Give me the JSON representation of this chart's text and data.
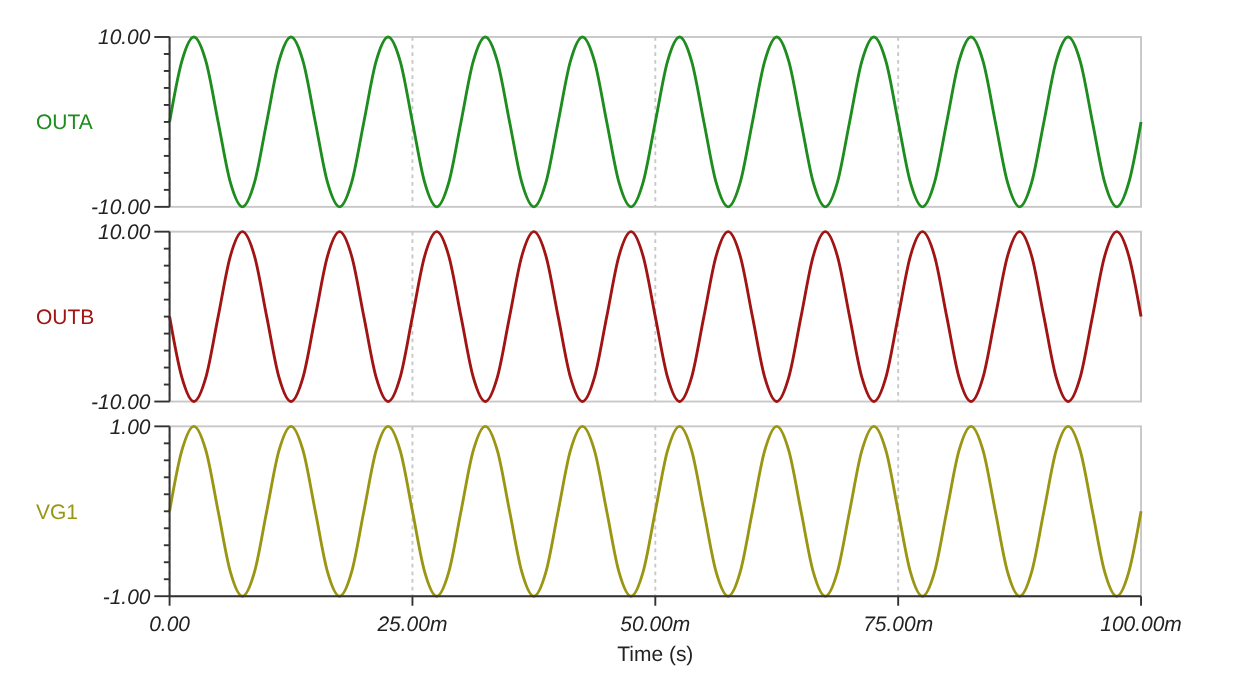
{
  "chart_data": [
    {
      "type": "line",
      "ylabel": "OUTA",
      "tick_labels": "y",
      "grid": "x",
      "xlim": [
        0,
        100
      ],
      "xticks": [
        0,
        25,
        50,
        75,
        100
      ],
      "ylim": [
        -10,
        10
      ],
      "yticks": [
        {
          "value": -10,
          "label": "-10.00"
        },
        {
          "value": -8,
          "label": null
        },
        {
          "value": -6,
          "label": null
        },
        {
          "value": -4,
          "label": null
        },
        {
          "value": -2,
          "label": null
        },
        {
          "value": 0,
          "label": null
        },
        {
          "value": 2,
          "label": null
        },
        {
          "value": 4,
          "label": null
        },
        {
          "value": 6,
          "label": null
        },
        {
          "value": 8,
          "label": null
        },
        {
          "value": 10,
          "label": "10.00"
        }
      ],
      "x": [
        0,
        1.25,
        2.5,
        3.75,
        5,
        6.25,
        7.5,
        8.75,
        10,
        11.25,
        12.5,
        13.75,
        15,
        16.25,
        17.5,
        18.75,
        20,
        21.25,
        22.5,
        23.75,
        25,
        26.25,
        27.5,
        28.75,
        30,
        31.25,
        32.5,
        33.75,
        35,
        36.25,
        37.5,
        38.75,
        40,
        41.25,
        42.5,
        43.75,
        45,
        46.25,
        47.5,
        48.75,
        50,
        51.25,
        52.5,
        53.75,
        55,
        56.25,
        57.5,
        58.75,
        60,
        61.25,
        62.5,
        63.75,
        65,
        66.25,
        67.5,
        68.75,
        70,
        71.25,
        72.5,
        73.75,
        75,
        76.25,
        77.5,
        78.75,
        80,
        81.25,
        82.5,
        83.75,
        85,
        86.25,
        87.5,
        88.75,
        90,
        91.25,
        92.5,
        93.75,
        95,
        96.25,
        97.5,
        98.75,
        100
      ],
      "series": [
        {
          "color": "#1e8c1e",
          "values": [
            0,
            7.1,
            10,
            7.1,
            0,
            -7.1,
            -10,
            -7.1,
            0,
            7.1,
            10,
            7.1,
            0,
            -7.1,
            -10,
            -7.1,
            0,
            7.1,
            10,
            7.1,
            0,
            -7.1,
            -10,
            -7.1,
            0,
            7.1,
            10,
            7.1,
            0,
            -7.1,
            -10,
            -7.1,
            0,
            7.1,
            10,
            7.1,
            0,
            -7.1,
            -10,
            -7.1,
            0,
            7.1,
            10,
            7.1,
            0,
            -7.1,
            -10,
            -7.1,
            0,
            7.1,
            10,
            7.1,
            0,
            -7.1,
            -10,
            -7.1,
            0,
            7.1,
            10,
            7.1,
            0,
            -7.1,
            -10,
            -7.1,
            0,
            7.1,
            10,
            7.1,
            0,
            -7.1,
            -10,
            -7.1,
            0,
            7.1,
            10,
            7.1,
            0,
            -7.1,
            -10,
            -7.1,
            0
          ]
        }
      ]
    },
    {
      "type": "line",
      "ylabel": "OUTB",
      "tick_labels": "y",
      "grid": "x",
      "xlim": [
        0,
        100
      ],
      "xticks": [
        0,
        25,
        50,
        75,
        100
      ],
      "ylim": [
        -10,
        10
      ],
      "yticks": [
        {
          "value": -10,
          "label": "-10.00"
        },
        {
          "value": -8,
          "label": null
        },
        {
          "value": -6,
          "label": null
        },
        {
          "value": -4,
          "label": null
        },
        {
          "value": -2,
          "label": null
        },
        {
          "value": 0,
          "label": null
        },
        {
          "value": 2,
          "label": null
        },
        {
          "value": 4,
          "label": null
        },
        {
          "value": 6,
          "label": null
        },
        {
          "value": 8,
          "label": null
        },
        {
          "value": 10,
          "label": "10.00"
        }
      ],
      "x": [
        0,
        1.25,
        2.5,
        3.75,
        5,
        6.25,
        7.5,
        8.75,
        10,
        11.25,
        12.5,
        13.75,
        15,
        16.25,
        17.5,
        18.75,
        20,
        21.25,
        22.5,
        23.75,
        25,
        26.25,
        27.5,
        28.75,
        30,
        31.25,
        32.5,
        33.75,
        35,
        36.25,
        37.5,
        38.75,
        40,
        41.25,
        42.5,
        43.75,
        45,
        46.25,
        47.5,
        48.75,
        50,
        51.25,
        52.5,
        53.75,
        55,
        56.25,
        57.5,
        58.75,
        60,
        61.25,
        62.5,
        63.75,
        65,
        66.25,
        67.5,
        68.75,
        70,
        71.25,
        72.5,
        73.75,
        75,
        76.25,
        77.5,
        78.75,
        80,
        81.25,
        82.5,
        83.75,
        85,
        86.25,
        87.5,
        88.75,
        90,
        91.25,
        92.5,
        93.75,
        95,
        96.25,
        97.5,
        98.75,
        100
      ],
      "series": [
        {
          "color": "#a01414",
          "values": [
            0,
            -7.1,
            -10,
            -7.1,
            0,
            7.1,
            10,
            7.1,
            0,
            -7.1,
            -10,
            -7.1,
            0,
            7.1,
            10,
            7.1,
            0,
            -7.1,
            -10,
            -7.1,
            0,
            7.1,
            10,
            7.1,
            0,
            -7.1,
            -10,
            -7.1,
            0,
            7.1,
            10,
            7.1,
            0,
            -7.1,
            -10,
            -7.1,
            0,
            7.1,
            10,
            7.1,
            0,
            -7.1,
            -10,
            -7.1,
            0,
            7.1,
            10,
            7.1,
            0,
            -7.1,
            -10,
            -7.1,
            0,
            7.1,
            10,
            7.1,
            0,
            -7.1,
            -10,
            -7.1,
            0,
            7.1,
            10,
            7.1,
            0,
            -7.1,
            -10,
            -7.1,
            0,
            7.1,
            10,
            7.1,
            0,
            -7.1,
            -10,
            -7.1,
            0,
            7.1,
            10,
            7.1,
            0
          ]
        }
      ]
    },
    {
      "type": "line",
      "ylabel": "VG1",
      "xlabel": "Time (s)",
      "grid": "x",
      "xlim": [
        0,
        100
      ],
      "xticks": [
        {
          "value": 0,
          "label": "0.00"
        },
        {
          "value": 25,
          "label": "25.00m"
        },
        {
          "value": 50,
          "label": "50.00m"
        },
        {
          "value": 75,
          "label": "75.00m"
        },
        {
          "value": 100,
          "label": "100.00m"
        }
      ],
      "ylim": [
        -1,
        1
      ],
      "yticks": [
        {
          "value": -1,
          "label": "-1.00"
        },
        {
          "value": -0.8,
          "label": null
        },
        {
          "value": -0.6,
          "label": null
        },
        {
          "value": -0.4,
          "label": null
        },
        {
          "value": -0.2,
          "label": null
        },
        {
          "value": 0,
          "label": null
        },
        {
          "value": 0.2,
          "label": null
        },
        {
          "value": 0.4,
          "label": null
        },
        {
          "value": 0.6,
          "label": null
        },
        {
          "value": 0.8,
          "label": null
        },
        {
          "value": 1,
          "label": "1.00"
        }
      ],
      "x": [
        0,
        1.25,
        2.5,
        3.75,
        5,
        6.25,
        7.5,
        8.75,
        10,
        11.25,
        12.5,
        13.75,
        15,
        16.25,
        17.5,
        18.75,
        20,
        21.25,
        22.5,
        23.75,
        25,
        26.25,
        27.5,
        28.75,
        30,
        31.25,
        32.5,
        33.75,
        35,
        36.25,
        37.5,
        38.75,
        40,
        41.25,
        42.5,
        43.75,
        45,
        46.25,
        47.5,
        48.75,
        50,
        51.25,
        52.5,
        53.75,
        55,
        56.25,
        57.5,
        58.75,
        60,
        61.25,
        62.5,
        63.75,
        65,
        66.25,
        67.5,
        68.75,
        70,
        71.25,
        72.5,
        73.75,
        75,
        76.25,
        77.5,
        78.75,
        80,
        81.25,
        82.5,
        83.75,
        85,
        86.25,
        87.5,
        88.75,
        90,
        91.25,
        92.5,
        93.75,
        95,
        96.25,
        97.5,
        98.75,
        100
      ],
      "series": [
        {
          "color": "#9a9614",
          "values": [
            0,
            0.71,
            1,
            0.71,
            0,
            -0.71,
            -1,
            -0.71,
            0,
            0.71,
            1,
            0.71,
            0,
            -0.71,
            -1,
            -0.71,
            0,
            0.71,
            1,
            0.71,
            0,
            -0.71,
            -1,
            -0.71,
            0,
            0.71,
            1,
            0.71,
            0,
            -0.71,
            -1,
            -0.71,
            0,
            0.71,
            1,
            0.71,
            0,
            -0.71,
            -1,
            -0.71,
            0,
            0.71,
            1,
            0.71,
            0,
            -0.71,
            -1,
            -0.71,
            0,
            0.71,
            1,
            0.71,
            0,
            -0.71,
            -1,
            -0.71,
            0,
            0.71,
            1,
            0.71,
            0,
            -0.71,
            -1,
            -0.71,
            0,
            0.71,
            1,
            0.71,
            0,
            -0.71,
            -1,
            -0.71,
            0,
            0.71,
            1,
            0.71,
            0,
            -0.71,
            -1,
            -0.71,
            0
          ]
        }
      ]
    }
  ]
}
